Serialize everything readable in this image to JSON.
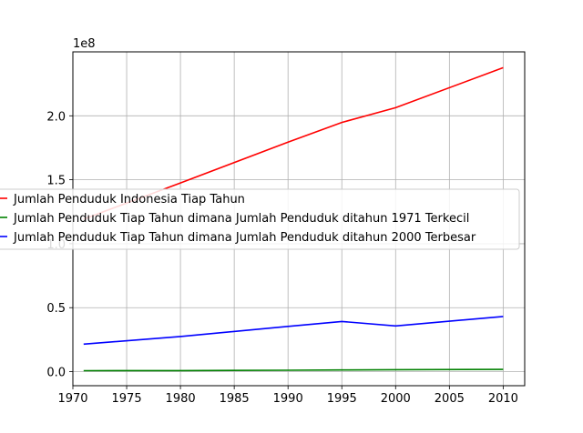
{
  "chart_data": {
    "type": "line",
    "title": "",
    "xlabel": "",
    "ylabel": "",
    "offset_text": "1e8",
    "xlim": [
      1970,
      2012
    ],
    "ylim": [
      -11000000.0,
      250000000.0
    ],
    "grid": true,
    "legend_position": "center-left",
    "x_ticks": [
      1970,
      1975,
      1980,
      1985,
      1990,
      1995,
      2000,
      2005,
      2010
    ],
    "y_ticks": [
      0,
      50000000.0,
      100000000.0,
      150000000.0,
      200000000.0
    ],
    "y_tick_labels": [
      "0.0",
      "0.5",
      "1.0",
      "1.5",
      "2.0"
    ],
    "x": [
      1971,
      1980,
      1990,
      1995,
      2000,
      2010
    ],
    "series": [
      {
        "name": "Jumlah Penduduk Indonesia Tiap Tahun",
        "color": "#ff0000",
        "values": [
          119200000,
          147500000,
          179400000,
          194800000,
          206300000,
          237600000
        ]
      },
      {
        "name": "Jumlah Penduduk Tiap Tahun dimana Jumlah Penduduk ditahun 1971 Terkecil",
        "color": "#008000",
        "values": [
          700000,
          800000,
          1100000,
          1300000,
          1500000,
          1700000
        ]
      },
      {
        "name": "Jumlah Penduduk Tiap Tahun dimana Jumlah Penduduk ditahun 2000 Terbesar",
        "color": "#0000ff",
        "values": [
          21500000,
          27500000,
          35400000,
          39200000,
          35700000,
          43100000
        ]
      }
    ]
  }
}
